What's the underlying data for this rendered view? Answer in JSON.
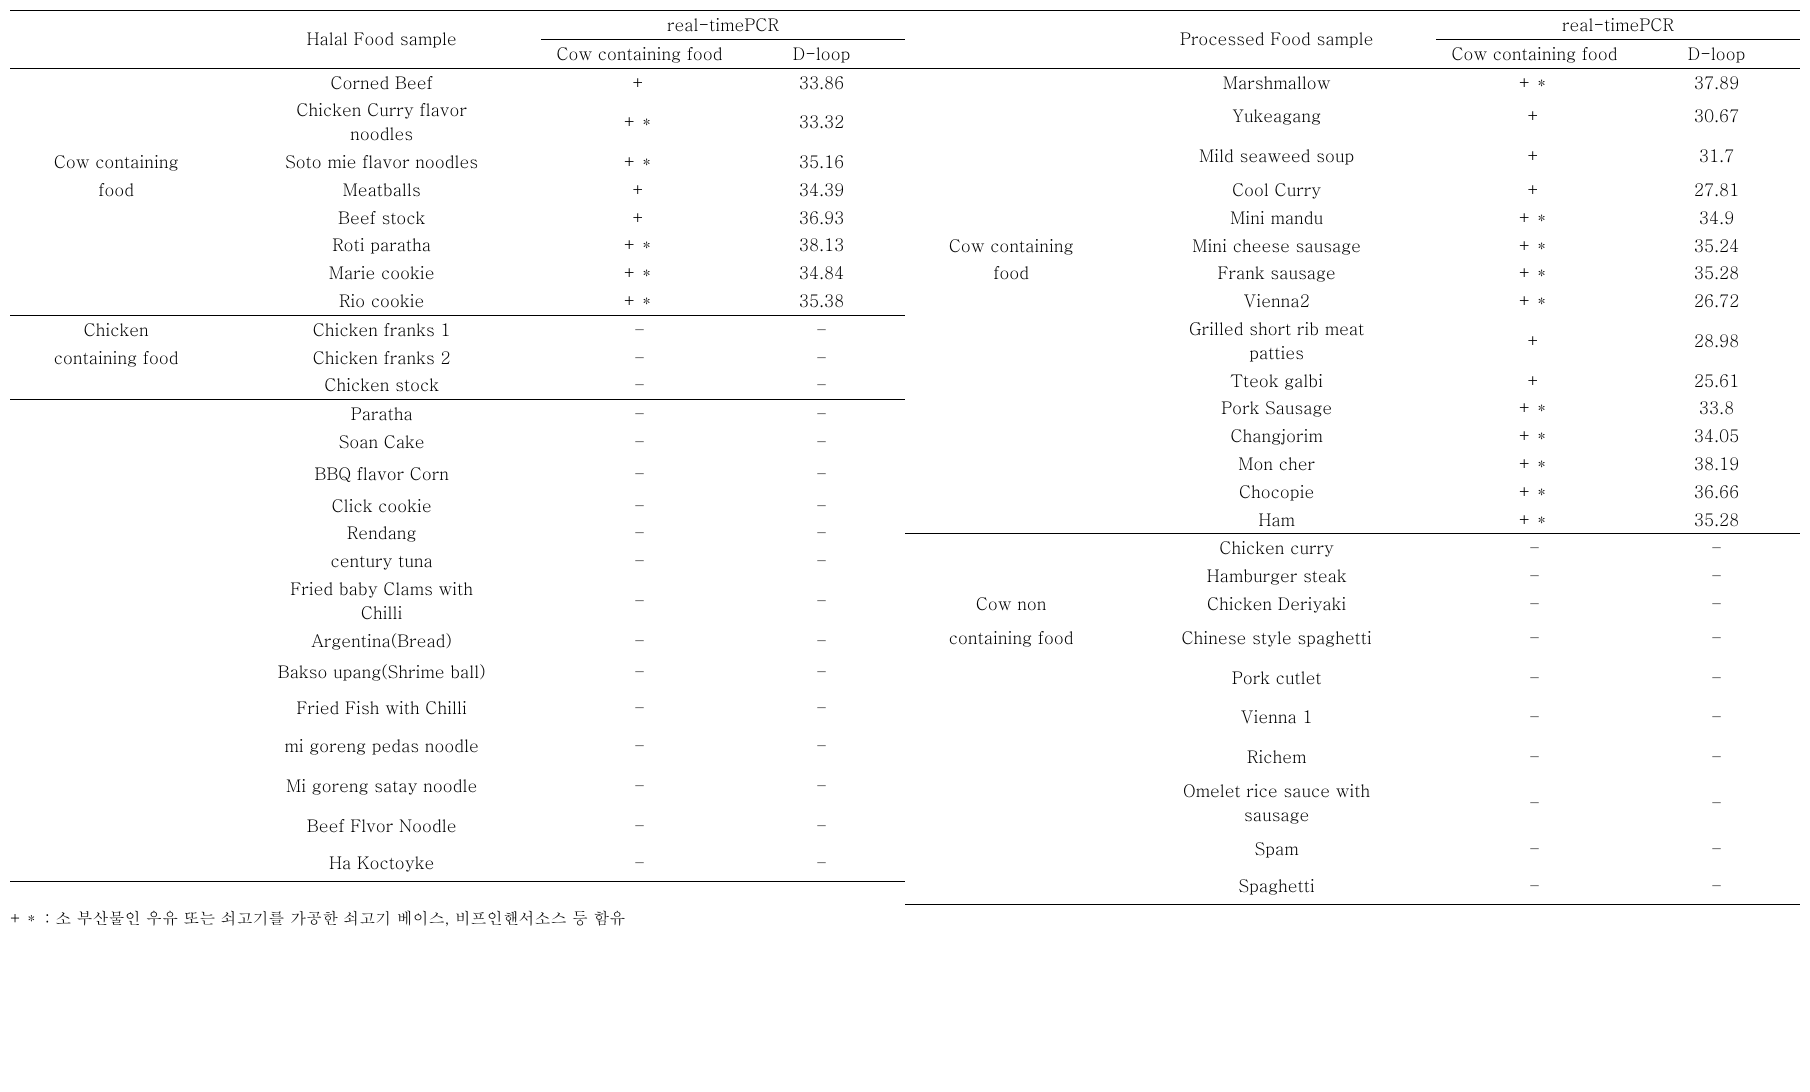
{
  "headers": {
    "pcr": "real-timePCR",
    "cow_containing": "Cow containing food",
    "dloop": "D-loop",
    "halal_sample": "Halal Food sample",
    "processed_sample": "Processed Food sample"
  },
  "left": {
    "group1": {
      "label_l1": "Cow containing",
      "label_l2": "food",
      "rows": [
        {
          "sample": "Corned Beef",
          "pcr": "+",
          "dloop": "33.86"
        },
        {
          "sample_l1": "Chicken Curry  flavor",
          "sample_l2": "noodles",
          "pcr": "+＊",
          "dloop": "33.32"
        },
        {
          "sample": "Soto mie  flavor noodles",
          "pcr": "+＊",
          "dloop": "35.16"
        },
        {
          "sample": "Meatballs",
          "pcr": "+",
          "dloop": "34.39"
        },
        {
          "sample": "Beef stock",
          "pcr": "+",
          "dloop": "36.93"
        },
        {
          "sample": "Roti paratha",
          "pcr": "+＊",
          "dloop": "38.13"
        },
        {
          "sample": "Marie cookie",
          "pcr": "+＊",
          "dloop": "34.84"
        },
        {
          "sample": "Rio cookie",
          "pcr": "+＊",
          "dloop": "35.38"
        }
      ]
    },
    "group2": {
      "label_l1": "Chicken",
      "label_l2": "containing food",
      "rows": [
        {
          "sample": "Chicken franks 1",
          "pcr": "–",
          "dloop": "–"
        },
        {
          "sample": "Chicken franks 2",
          "pcr": "–",
          "dloop": "–"
        },
        {
          "sample": "Chicken stock",
          "pcr": "–",
          "dloop": "–"
        }
      ]
    },
    "group3": {
      "rows": [
        {
          "sample": "Paratha",
          "pcr": "–",
          "dloop": "–"
        },
        {
          "sample": "Soan Cake",
          "pcr": "–",
          "dloop": "–"
        },
        {
          "sample": "BBQ flavor Corn",
          "pcr": "–",
          "dloop": "–"
        },
        {
          "sample": "Click cookie",
          "pcr": "–",
          "dloop": "–"
        },
        {
          "sample": "Rendang",
          "pcr": "–",
          "dloop": "–"
        },
        {
          "sample": "century tuna",
          "pcr": "–",
          "dloop": "–"
        },
        {
          "sample_l1": "Fried baby  Clams with",
          "sample_l2": "Chilli",
          "pcr": "–",
          "dloop": "–"
        },
        {
          "sample": "Argentina(Bread)",
          "pcr": "–",
          "dloop": "–"
        },
        {
          "sample": "Bakso  upang(Shrime ball)",
          "pcr": "–",
          "dloop": "–"
        },
        {
          "sample": "Fried Fish  with Chilli",
          "pcr": "–",
          "dloop": "–"
        },
        {
          "sample": "mi goreng  pedas noodle",
          "pcr": "–",
          "dloop": "–"
        },
        {
          "sample": "Mi goreng satay noodle",
          "pcr": "–",
          "dloop": "–"
        },
        {
          "sample": "Beef Flvor  Noodle",
          "pcr": "–",
          "dloop": "–"
        },
        {
          "sample": "Ha Koctoyke",
          "pcr": "–",
          "dloop": "–"
        }
      ]
    }
  },
  "right": {
    "group1": {
      "label_l1": "Cow containing",
      "label_l2": "food",
      "rows": [
        {
          "sample": "Marshmallow",
          "pcr": "+＊",
          "dloop": "37.89"
        },
        {
          "sample": "Yukeagang",
          "pcr": "+",
          "dloop": "30.67"
        },
        {
          "sample": "Mild seaweed soup",
          "pcr": "+",
          "dloop": "31.7"
        },
        {
          "sample": "Cool Curry",
          "pcr": "+",
          "dloop": "27.81"
        },
        {
          "sample": "Mini mandu",
          "pcr": "+＊",
          "dloop": "34.9"
        },
        {
          "sample": "Mini cheese  sausage",
          "pcr": "+＊",
          "dloop": "35.24"
        },
        {
          "sample": "Frank sausage",
          "pcr": "+＊",
          "dloop": "35.28"
        },
        {
          "sample": "Vienna2",
          "pcr": "+＊",
          "dloop": "26.72"
        },
        {
          "sample_l1": "Grilled short rib meat",
          "sample_l2": "patties",
          "pcr": "+",
          "dloop": "28.98"
        },
        {
          "sample": "Tteok galbi",
          "pcr": "+",
          "dloop": "25.61"
        },
        {
          "sample": "Pork Sausage",
          "pcr": "+＊",
          "dloop": "33.8"
        },
        {
          "sample": "Changjorim",
          "pcr": "+＊",
          "dloop": "34.05"
        },
        {
          "sample": "Mon cher",
          "pcr": "+＊",
          "dloop": "38.19"
        },
        {
          "sample": "Chocopie",
          "pcr": "+＊",
          "dloop": "36.66"
        },
        {
          "sample": "Ham",
          "pcr": "+＊",
          "dloop": "35.28"
        }
      ]
    },
    "group2": {
      "label_l1": "Cow non",
      "label_l2": "containing food",
      "rows": [
        {
          "sample": "Chicken curry",
          "pcr": "–",
          "dloop": "–"
        },
        {
          "sample": "Hamburger  steak",
          "pcr": "–",
          "dloop": "–"
        },
        {
          "sample": "Chicken Deriyaki",
          "pcr": "–",
          "dloop": "–"
        },
        {
          "sample": "Chinese style spaghetti",
          "pcr": "–",
          "dloop": "–"
        },
        {
          "sample": "Pork cutlet",
          "pcr": "–",
          "dloop": "–"
        },
        {
          "sample": "Vienna 1",
          "pcr": "–",
          "dloop": "–"
        },
        {
          "sample": "Richem",
          "pcr": "–",
          "dloop": "–"
        },
        {
          "sample_l1": "Omelet rice sauce with",
          "sample_l2": "sausage",
          "pcr": "–",
          "dloop": "–"
        },
        {
          "sample": "Spam",
          "pcr": "–",
          "dloop": "–"
        },
        {
          "sample": "Spaghetti",
          "pcr": "–",
          "dloop": "–"
        }
      ]
    }
  },
  "footnote": "+＊ : 소 부산물인 우유 또는 쇠고기를 가공한 쇠고기 베이스, 비프인핸서소스 등  함유"
}
